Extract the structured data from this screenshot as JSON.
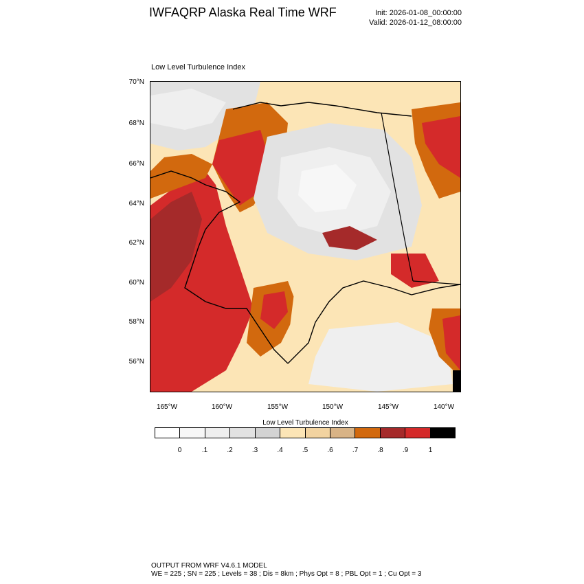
{
  "header": {
    "title": "IWFAQRP Alaska Real Time WRF",
    "init": "Init: 2026-01-08_00:00:00",
    "valid": "Valid: 2026-01-12_08:00:00"
  },
  "plot": {
    "title": "Low Level Turbulence Index",
    "lat_labels": [
      "70°N",
      "68°N",
      "66°N",
      "64°N",
      "62°N",
      "60°N",
      "58°N",
      "56°N"
    ],
    "lon_labels": [
      "165°W",
      "160°W",
      "155°W",
      "150°W",
      "145°W",
      "140°W"
    ]
  },
  "colorbar": {
    "title": "Low Level Turbulence Index",
    "colors": [
      "#ffffff",
      "#f7f7f7",
      "#efefef",
      "#e2e2e2",
      "#d3d3d3",
      "#fce5b6",
      "#f2d3a0",
      "#d8b386",
      "#d2690e",
      "#a52a2a",
      "#d42a2a",
      "#000000"
    ],
    "tick_labels": [
      "0",
      ".1",
      ".2",
      ".3",
      ".4",
      ".5",
      ".6",
      ".7",
      ".8",
      ".9",
      "1"
    ]
  },
  "footer": {
    "line1": "OUTPUT FROM WRF V4.6.1 MODEL",
    "line2": "WE = 225 ; SN = 225 ; Levels = 38 ; Dis = 8km ; Phys Opt = 8 ; PBL Opt = 1 ; Cu Opt = 3"
  }
}
